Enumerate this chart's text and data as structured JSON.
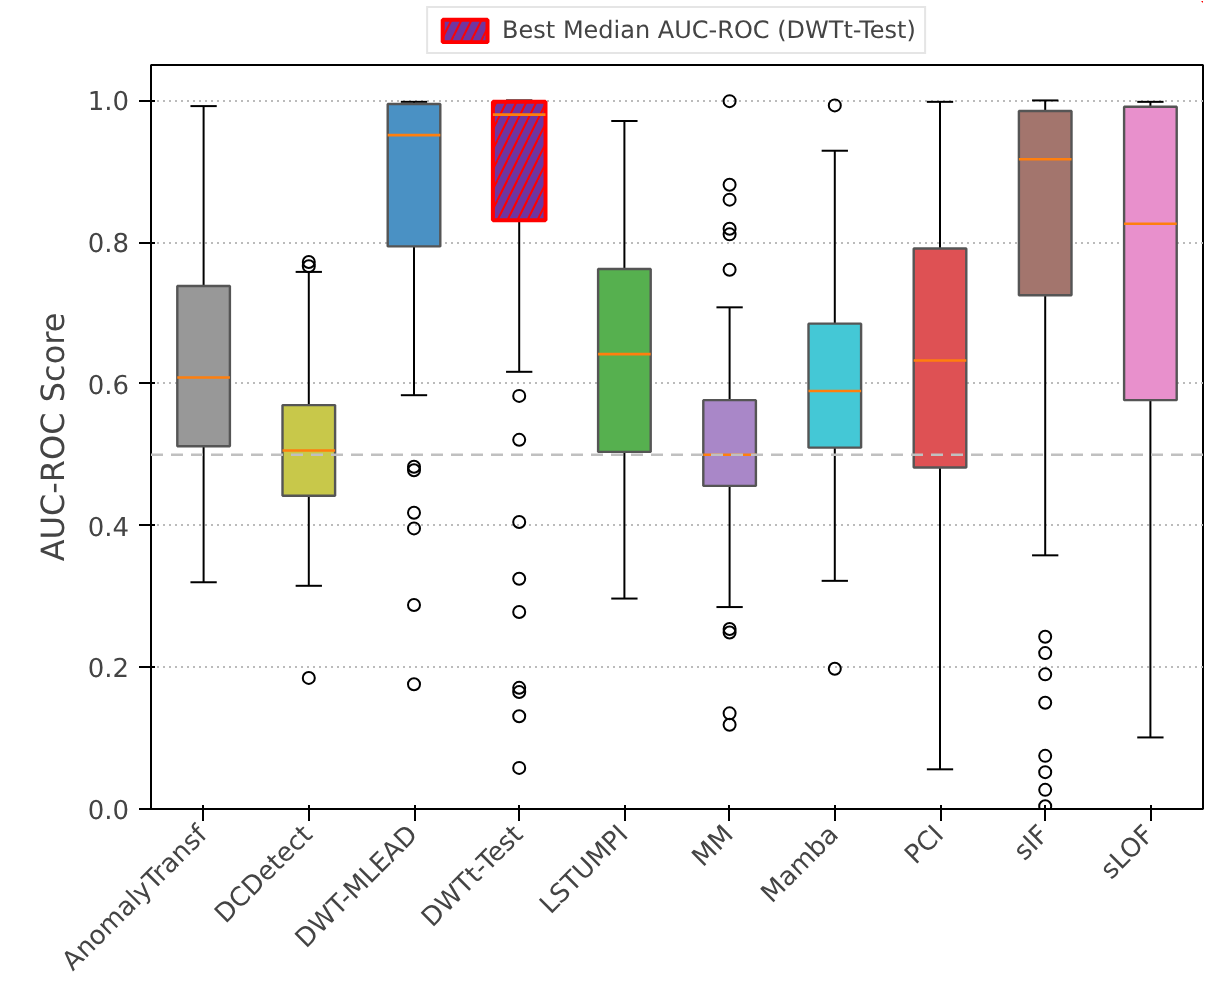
{
  "chart_data": {
    "type": "box",
    "ylabel": "AUC-ROC Score",
    "categories": [
      "AnomalyTransf",
      "DCDetect",
      "DWT-MLEAD",
      "DWTt-Test",
      "LSTUMPI",
      "MM",
      "Mamba",
      "PCI",
      "sIF",
      "sLOF"
    ],
    "series": [
      {
        "colors": [
          "#989898",
          "#c8c84a",
          "#4a91c4",
          null,
          "#56b04f",
          "#a987c8",
          "#44c8d6",
          "#de5154",
          "#a3756d",
          "#e890cc"
        ],
        "boxes": [
          {
            "low": 0.32,
            "q1": 0.512,
            "median": 0.609,
            "q3": 0.738,
            "high": 0.992
          },
          {
            "low": 0.315,
            "q1": 0.442,
            "median": 0.506,
            "q3": 0.57,
            "high": 0.758,
            "outliers": [
              0.772,
              0.766,
              0.185
            ]
          },
          {
            "low": 0.584,
            "q1": 0.794,
            "median": 0.951,
            "q3": 0.995,
            "high": 0.998,
            "outliers": [
              0.483,
              0.478,
              0.418,
              0.396,
              0.288,
              0.176
            ]
          },
          null,
          {
            "low": 0.297,
            "q1": 0.504,
            "median": 0.642,
            "q3": 0.762,
            "high": 0.971
          },
          {
            "low": 0.285,
            "q1": 0.456,
            "median": 0.5,
            "q3": 0.577,
            "high": 0.708,
            "outliers": [
              0.999,
              0.881,
              0.86,
              0.819,
              0.811,
              0.761,
              0.254,
              0.249,
              0.135,
              0.119
            ]
          },
          {
            "low": 0.322,
            "q1": 0.51,
            "median": 0.59,
            "q3": 0.685,
            "high": 0.929,
            "outliers": [
              0.993,
              0.198
            ]
          },
          {
            "low": 0.056,
            "q1": 0.482,
            "median": 0.633,
            "q3": 0.791,
            "high": 0.998
          },
          {
            "low": 0.358,
            "q1": 0.725,
            "median": 0.917,
            "q3": 0.985,
            "high": 1.0,
            "outliers": [
              0.243,
              0.22,
              0.19,
              0.15,
              0.075,
              0.052,
              0.027,
              0.004
            ]
          },
          {
            "low": 0.101,
            "q1": 0.577,
            "median": 0.826,
            "q3": 0.991,
            "high": 0.998
          }
        ]
      },
      {
        "name": "Best Median AUC-ROC (DWTt-Test)",
        "color": "#6f35a0",
        "boxes": [
          null,
          null,
          null,
          {
            "low": 0.617,
            "q1": 0.831,
            "median": 0.98,
            "q3": 0.998,
            "high": 1.0,
            "outliers": [
              0.583,
              0.521,
              0.405,
              0.325,
              0.278,
              0.171,
              0.165,
              0.131,
              0.058
            ]
          },
          null,
          null,
          null,
          null,
          null,
          null
        ]
      }
    ],
    "ylim": [
      0,
      1.05
    ],
    "yticks": [
      {
        "value": 0,
        "label": "0.0"
      },
      0.2,
      0.4,
      0.6,
      0.8,
      {
        "value": 1,
        "label": "1.0"
      }
    ],
    "grid": "y",
    "legend": "top",
    "ref_lines": [
      {
        "axis": "y",
        "value": 0.5,
        "color": "#c0c0c0",
        "line_style": "dashed"
      }
    ]
  }
}
